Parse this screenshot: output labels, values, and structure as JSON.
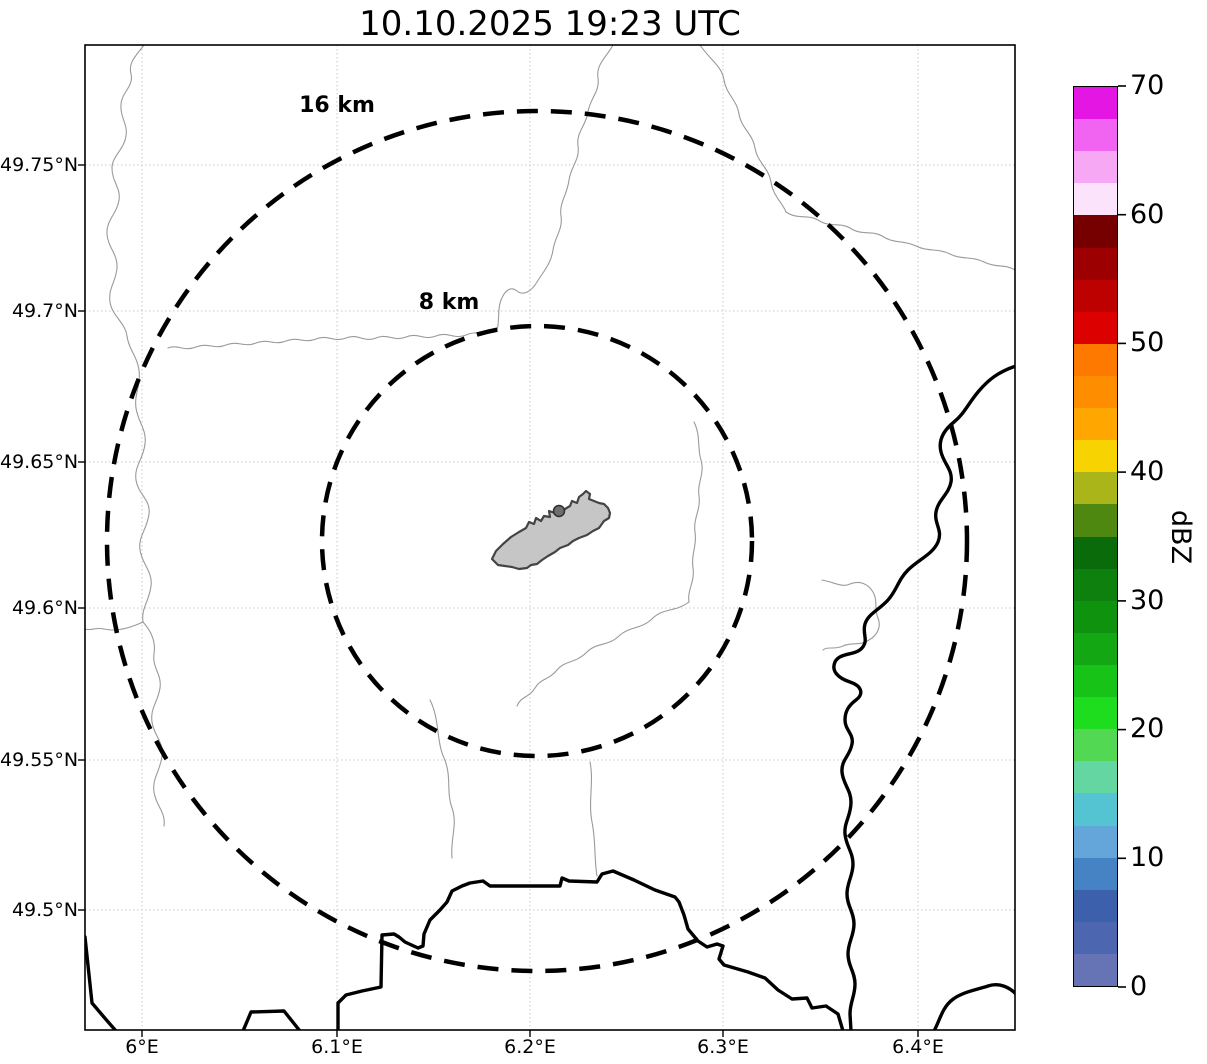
{
  "title": "10.10.2025 19:23 UTC",
  "map": {
    "range_rings": [
      {
        "label": "16 km",
        "radius_km": 16
      },
      {
        "label": "8 km",
        "radius_km": 8
      }
    ],
    "site_marker": "radar-site-area"
  },
  "axes": {
    "lat": [
      "49.75°N",
      "49.7°N",
      "49.65°N",
      "49.6°N",
      "49.55°N",
      "49.5°N"
    ],
    "lon": [
      "6°E",
      "6.1°E",
      "6.2°E",
      "6.3°E",
      "6.4°E"
    ]
  },
  "colorbar": {
    "label": "dBZ",
    "min": 0,
    "max": 70,
    "tick_labels": [
      "70",
      "60",
      "50",
      "40",
      "30",
      "20",
      "10",
      "0"
    ],
    "segment_dbz_step": 2.5,
    "segments_bottom_to_top": [
      "#6673b5",
      "#4d66b0",
      "#3c60ac",
      "#4583c4",
      "#64a6da",
      "#55c4d2",
      "#63d6a2",
      "#53d853",
      "#1edc1e",
      "#17c317",
      "#13a713",
      "#0f930f",
      "#0d800d",
      "#0a6b0a",
      "#4f8811",
      "#a9b518",
      "#f8d302",
      "#ffa600",
      "#ff8d00",
      "#fe7900",
      "#dd0000",
      "#bd0000",
      "#9c0000",
      "#760000",
      "#fbe3fb",
      "#f6a8f4",
      "#f163f1",
      "#e316e3"
    ]
  },
  "style_colors": {
    "grid": "#c9c9c9",
    "thin_border": "#9a9a9a",
    "thick_border": "#000000",
    "range_ring": "#000000",
    "site_fill": "#c6c6c6",
    "site_outline": "#444444"
  }
}
